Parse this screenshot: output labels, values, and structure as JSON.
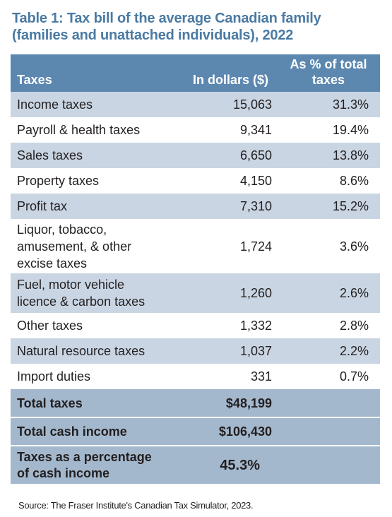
{
  "title_line1": "Table 1: Tax bill of the average Canadian family",
  "title_line2": "(families and unattached individuals), 2022",
  "headers": {
    "taxes": "Taxes",
    "dollars": "In dollars ($)",
    "percent": "As % of total taxes"
  },
  "rows": [
    {
      "label": "Income taxes",
      "dollars": "15,063",
      "percent": "31.3%"
    },
    {
      "label": "Payroll & health taxes",
      "dollars": "9,341",
      "percent": "19.4%"
    },
    {
      "label": "Sales taxes",
      "dollars": "6,650",
      "percent": "13.8%"
    },
    {
      "label": "Property taxes",
      "dollars": "4,150",
      "percent": "8.6%"
    },
    {
      "label": "Profit tax",
      "dollars": "7,310",
      "percent": "15.2%"
    },
    {
      "label_lines": [
        "Liquor, tobacco,",
        "amusement, & other",
        "excise taxes"
      ],
      "dollars": "1,724",
      "percent": "3.6%"
    },
    {
      "label_lines": [
        "Fuel, motor vehicle",
        "licence & carbon taxes"
      ],
      "dollars": "1,260",
      "percent": "2.6%"
    },
    {
      "label": "Other taxes",
      "dollars": "1,332",
      "percent": "2.8%"
    },
    {
      "label": "Natural resource taxes",
      "dollars": "1,037",
      "percent": "2.2%"
    },
    {
      "label": "Import duties",
      "dollars": "331",
      "percent": "0.7%"
    }
  ],
  "summary": {
    "total_taxes_label": "Total taxes",
    "total_taxes_value": "$48,199",
    "total_income_label": "Total cash income",
    "total_income_value": "$106,430",
    "pct_label_lines": [
      "Taxes as a percentage",
      "of cash income"
    ],
    "pct_value": "45.3%"
  },
  "source": "Source: The Fraser Institute's Canadian Tax Simulator, 2023.",
  "colors": {
    "title": "#4a7aa3",
    "header_bg": "#5c88b0",
    "shaded_row": "#c9d5e3",
    "summary_bg": "#a4b8cd"
  }
}
